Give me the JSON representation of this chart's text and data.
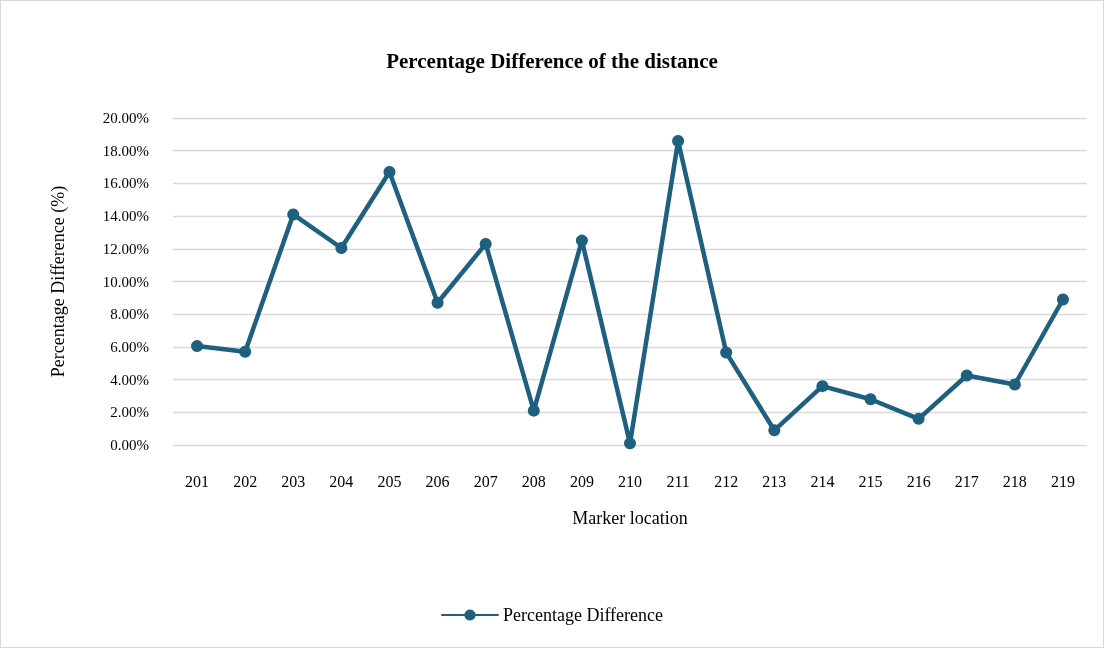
{
  "chart_data": {
    "type": "line",
    "title": "Percentage Difference of the distance",
    "xlabel": "Marker location",
    "ylabel": "Percentage Difference (%)",
    "categories": [
      "201",
      "202",
      "203",
      "204",
      "205",
      "206",
      "207",
      "208",
      "209",
      "210",
      "211",
      "212",
      "213",
      "214",
      "215",
      "216",
      "217",
      "218",
      "219"
    ],
    "series": [
      {
        "name": "Percentage Difference",
        "color": "#1f5f7f",
        "values": [
          6.05,
          5.7,
          14.1,
          12.05,
          16.7,
          8.7,
          12.3,
          2.1,
          12.5,
          0.1,
          18.6,
          5.65,
          0.9,
          3.6,
          2.8,
          1.6,
          4.25,
          3.7,
          8.9
        ]
      }
    ],
    "ylim": [
      0,
      20
    ],
    "yticks": [
      {
        "value": 0,
        "label": "0.00%"
      },
      {
        "value": 2,
        "label": "2.00%"
      },
      {
        "value": 4,
        "label": "4.00%"
      },
      {
        "value": 6,
        "label": "6.00%"
      },
      {
        "value": 8,
        "label": "8.00%"
      },
      {
        "value": 10,
        "label": "10.00%"
      },
      {
        "value": 12,
        "label": "12.00%"
      },
      {
        "value": 14,
        "label": "14.00%"
      },
      {
        "value": 16,
        "label": "16.00%"
      },
      {
        "value": 18,
        "label": "18.00%"
      },
      {
        "value": 20,
        "label": "20.00%"
      }
    ],
    "grid": "y",
    "legend": "bottom",
    "marker": "circle",
    "line_style": "solid"
  }
}
